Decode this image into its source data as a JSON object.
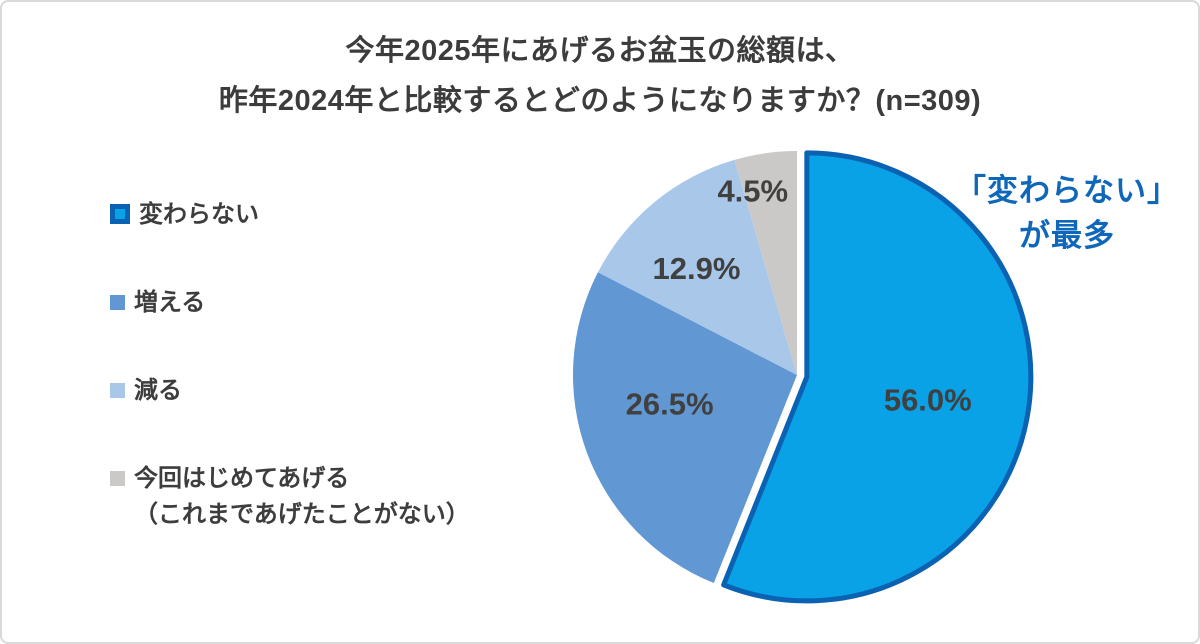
{
  "title": {
    "line1": "今年2025年にあげるお盆玉の総額は、",
    "line2": "昨年2024年と比較するとどのようになりますか？(n=309)"
  },
  "legend": {
    "items": [
      {
        "label": "変わらない"
      },
      {
        "label": "増える"
      },
      {
        "label": "減る"
      },
      {
        "label": "今回はじめてあげる",
        "sublabel": "（これまであげたことがない）"
      }
    ]
  },
  "annotation": {
    "line1": "「変わらない」",
    "line2": "が最多",
    "color": "#0f67ba"
  },
  "chart_data": {
    "type": "pie",
    "title": "今年2025年にあげるお盆玉の総額は、昨年2024年と比較するとどのようになりますか？(n=309)",
    "n": 309,
    "categories": [
      "変わらない",
      "増える",
      "減る",
      "今回はじめてあげる（これまであげたことがない）"
    ],
    "values": [
      56.0,
      26.5,
      12.9,
      4.5
    ],
    "labels": [
      "56.0%",
      "26.5%",
      "12.9%",
      "4.5%"
    ],
    "colors": [
      "#0aa2e6",
      "#6197d3",
      "#a9c7e9",
      "#cbc9c7"
    ],
    "start_angle_deg": 0,
    "direction": "clockwise",
    "legend_position": "left",
    "label_color": "#404040",
    "explode": {
      "index": 0,
      "offset": 10
    },
    "slice_border": {
      "index": 0,
      "color": "#0b62b2",
      "width": 5
    },
    "label_radius_ratios": [
      0.55,
      0.55,
      0.65,
      0.83
    ],
    "label_dx": [
      0,
      -12,
      -8,
      -18
    ],
    "label_dy": [
      0,
      -14,
      6,
      0
    ]
  }
}
